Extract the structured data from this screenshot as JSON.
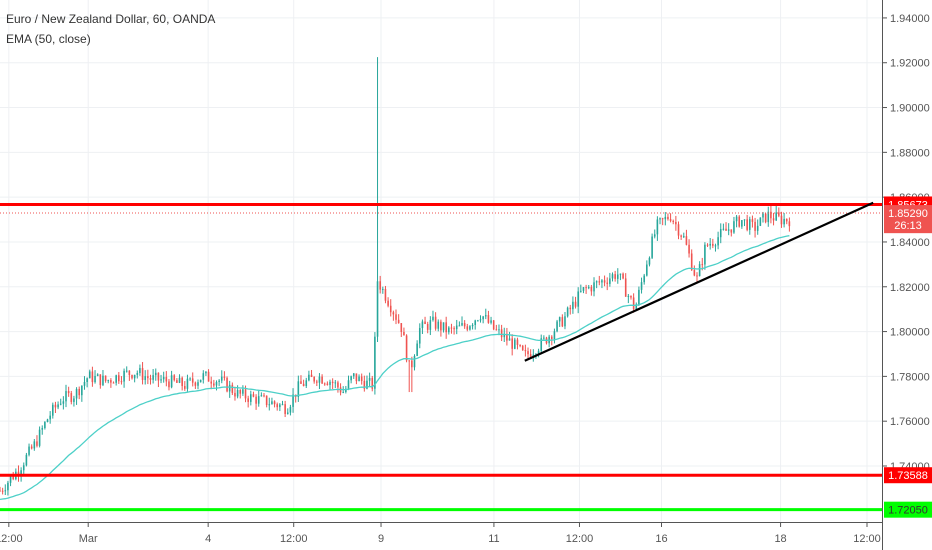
{
  "header": {
    "symbol_title": "Euro / New Zealand Dollar, 60, OANDA",
    "indicator": "EMA (50, close)"
  },
  "colors": {
    "up": "#26a69a",
    "down": "#ef5350",
    "ema": "#4dd0c8",
    "resistance": "#ff0000",
    "support_red": "#ff0000",
    "support_green": "#00ff00",
    "trendline": "#000000",
    "grid": "#eef0f3",
    "axis_text": "#555555"
  },
  "chart_data": {
    "type": "candlestick",
    "ylim": [
      1.715,
      1.948
    ],
    "y_ticks": [
      "1.94000",
      "1.92000",
      "1.90000",
      "1.88000",
      "1.86000",
      "1.84000",
      "1.82000",
      "1.80000",
      "1.78000",
      "1.76000",
      "1.74000"
    ],
    "x_ticks": [
      "12:00",
      "Mar",
      "4",
      "12:00",
      "9",
      "11",
      "12:00",
      "16",
      "18",
      "12:00"
    ],
    "price_labels": [
      {
        "value": 1.85673,
        "text": "1.85673",
        "color": "#ff0000"
      },
      {
        "value": 1.8529,
        "text": "1.85290",
        "color": "#ef5350"
      },
      {
        "value": 1.8475,
        "text": "26:13",
        "color": "#ef5350"
      },
      {
        "value": 1.73588,
        "text": "1.73588",
        "color": "#ff0000"
      },
      {
        "value": 1.7205,
        "text": "1.72050",
        "color": "#00ff00"
      }
    ],
    "horizontal_lines": [
      {
        "value": 1.85673,
        "color": "#ff0000",
        "style": "solid"
      },
      {
        "value": 1.73588,
        "color": "#ff0000",
        "style": "solid"
      },
      {
        "value": 1.7205,
        "color": "#00ff00",
        "style": "solid"
      },
      {
        "value": 1.8529,
        "color": "#ef5350",
        "style": "dotted"
      }
    ],
    "trendline": {
      "start": [
        1.787,
        0.595
      ],
      "end": [
        1.8575,
        0.99
      ]
    },
    "price_path": [
      [
        0.0,
        1.729
      ],
      [
        0.02,
        1.738
      ],
      [
        0.04,
        1.75
      ],
      [
        0.055,
        1.762
      ],
      [
        0.07,
        1.77
      ],
      [
        0.085,
        1.772
      ],
      [
        0.1,
        1.78
      ],
      [
        0.12,
        1.778
      ],
      [
        0.14,
        1.781
      ],
      [
        0.155,
        1.782
      ],
      [
        0.17,
        1.779
      ],
      [
        0.19,
        1.778
      ],
      [
        0.21,
        1.776
      ],
      [
        0.23,
        1.78
      ],
      [
        0.25,
        1.778
      ],
      [
        0.27,
        1.772
      ],
      [
        0.29,
        1.77
      ],
      [
        0.31,
        1.768
      ],
      [
        0.325,
        1.766
      ],
      [
        0.34,
        1.776
      ],
      [
        0.36,
        1.78
      ],
      [
        0.375,
        1.778
      ],
      [
        0.39,
        1.773
      ],
      [
        0.4,
        1.78
      ],
      [
        0.415,
        1.777
      ],
      [
        0.423,
        1.776
      ],
      [
        0.428,
        1.823
      ],
      [
        0.44,
        1.814
      ],
      [
        0.455,
        1.802
      ],
      [
        0.465,
        1.782
      ],
      [
        0.475,
        1.801
      ],
      [
        0.49,
        1.804
      ],
      [
        0.51,
        1.8
      ],
      [
        0.53,
        1.803
      ],
      [
        0.545,
        1.808
      ],
      [
        0.56,
        1.801
      ],
      [
        0.58,
        1.795
      ],
      [
        0.595,
        1.789
      ],
      [
        0.615,
        1.795
      ],
      [
        0.64,
        1.806
      ],
      [
        0.66,
        1.818
      ],
      [
        0.68,
        1.822
      ],
      [
        0.7,
        1.826
      ],
      [
        0.72,
        1.81
      ],
      [
        0.735,
        1.834
      ],
      [
        0.745,
        1.847
      ],
      [
        0.76,
        1.852
      ],
      [
        0.775,
        1.842
      ],
      [
        0.79,
        1.823
      ],
      [
        0.8,
        1.838
      ],
      [
        0.82,
        1.844
      ],
      [
        0.84,
        1.85
      ],
      [
        0.855,
        1.846
      ],
      [
        0.87,
        1.852
      ],
      [
        0.885,
        1.85
      ]
    ]
  }
}
